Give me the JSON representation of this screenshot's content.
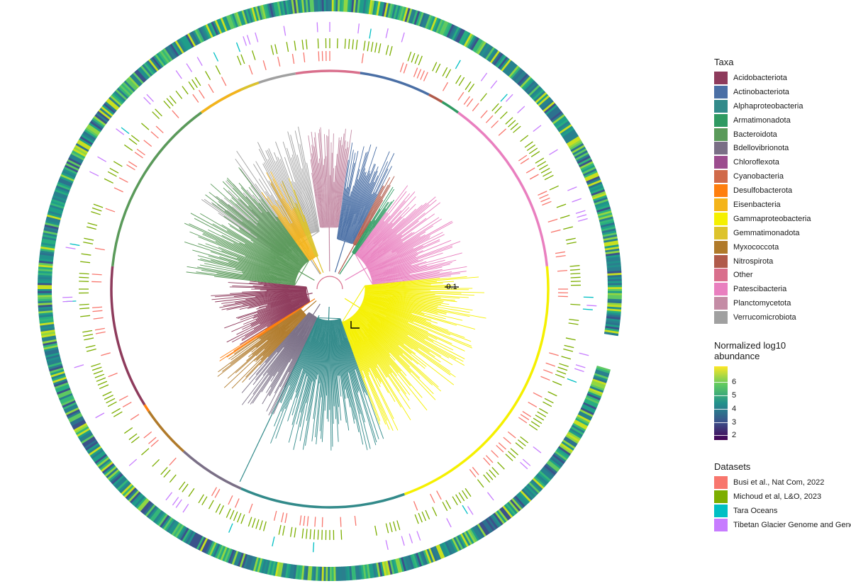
{
  "figure": {
    "scale_bar_label": "0.1"
  },
  "legend": {
    "taxa": {
      "title": "Taxa",
      "items": [
        {
          "label": "Acidobacteriota",
          "color": "#8e3b5c"
        },
        {
          "label": "Actinobacteriota",
          "color": "#4a6fa5"
        },
        {
          "label": "Alphaproteobacteria",
          "color": "#328a8a"
        },
        {
          "label": "Armatimonadota",
          "color": "#2f9a62"
        },
        {
          "label": "Bacteroidota",
          "color": "#5a9a5a"
        },
        {
          "label": "Bdellovibrionota",
          "color": "#7a6f86"
        },
        {
          "label": "Chloroflexota",
          "color": "#9c4c8e"
        },
        {
          "label": "Cyanobacteria",
          "color": "#d06a4a"
        },
        {
          "label": "Desulfobacterota",
          "color": "#ff7f0e"
        },
        {
          "label": "Eisenbacteria",
          "color": "#f4b41a"
        },
        {
          "label": "Gammaproteobacteria",
          "color": "#f5f000"
        },
        {
          "label": "Gemmatimonadota",
          "color": "#ddc32b"
        },
        {
          "label": "Myxococcota",
          "color": "#b07a2a"
        },
        {
          "label": "Nitrospirota",
          "color": "#b05a4a"
        },
        {
          "label": "Other",
          "color": "#d96f8c"
        },
        {
          "label": "Patescibacteria",
          "color": "#e97fbf"
        },
        {
          "label": "Planctomycetota",
          "color": "#c48ca5"
        },
        {
          "label": "Verrucomicrobiota",
          "color": "#a0a0a0"
        }
      ]
    },
    "abundance": {
      "title": "Normalized log10\nabundance",
      "ticks": [
        "6",
        "5",
        "4",
        "3",
        "2"
      ]
    },
    "datasets": {
      "title": "Datasets",
      "items": [
        {
          "label": "Busi et al., Nat Com, 2022",
          "color": "#f8766d"
        },
        {
          "label": "Michoud et al, L&O, 2023",
          "color": "#7cae00"
        },
        {
          "label": "Tara Oceans",
          "color": "#00bfc4"
        },
        {
          "label": "Tibetan Glacier Genome and Gene",
          "color": "#c77cff"
        }
      ]
    }
  }
}
